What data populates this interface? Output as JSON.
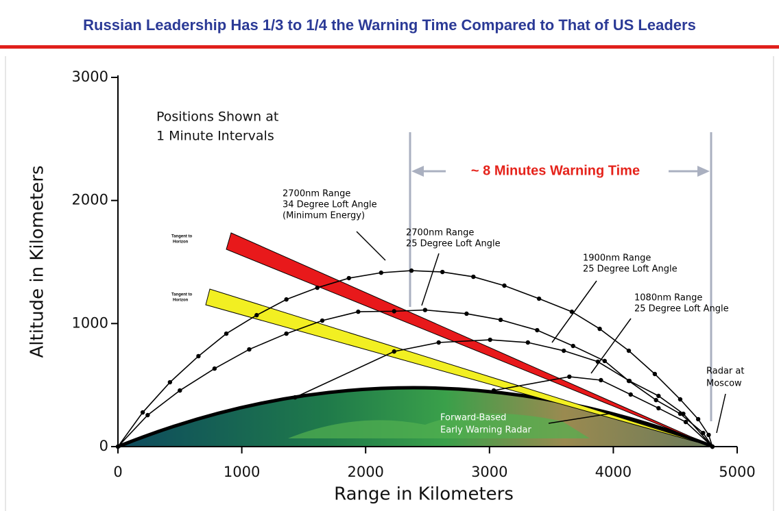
{
  "chart_data": {
    "type": "line",
    "title": "Russian Leadership Has 1/3 to 1/4 the Warning Time Compared to That of US Leaders",
    "x_label": "Range in Kilometers",
    "y_label": "Altitude in Kilometers",
    "xlim": [
      0,
      5000
    ],
    "ylim": [
      0,
      3000
    ],
    "xticks": [
      0,
      1000,
      2000,
      3000,
      4000,
      5000
    ],
    "yticks": [
      0,
      1000,
      2000,
      3000
    ],
    "annotations": {
      "positions_note": [
        "Positions Shown at",
        "1 Minute Intervals"
      ],
      "warning_time": "~ 8 Minutes Warning Time",
      "tangent_upper": [
        "Tangent to",
        "Horizon"
      ],
      "tangent_lower": [
        "Tangent to",
        "Horizon"
      ],
      "radar_forward": [
        "Forward-Based",
        "Early Warning Radar"
      ],
      "radar_moscow": [
        "Radar at",
        "Moscow"
      ]
    },
    "series": [
      {
        "name": [
          "2700nm Range",
          "34 Degree Loft Angle",
          "(Minimum Energy)"
        ],
        "color": "#000000",
        "x": [
          0,
          200,
          420,
          650,
          875,
          1120,
          1360,
          1610,
          1865,
          2125,
          2370,
          2620,
          2870,
          3120,
          3400,
          3665,
          3890,
          4125,
          4335,
          4540,
          4685,
          4770,
          4800
        ],
        "values": [
          0,
          278,
          523,
          735,
          918,
          1068,
          1196,
          1291,
          1369,
          1413,
          1430,
          1419,
          1380,
          1308,
          1202,
          1096,
          957,
          779,
          590,
          384,
          223,
          95,
          0
        ]
      },
      {
        "name": [
          "2700nm Range",
          "25 Degree Loft Angle"
        ],
        "color": "#000000",
        "x": [
          0,
          240,
          500,
          780,
          1060,
          1360,
          1650,
          1940,
          2230,
          2480,
          2815,
          3090,
          3385,
          3675,
          3930,
          4125,
          4345,
          4540,
          4725,
          4800
        ],
        "values": [
          0,
          256,
          456,
          634,
          790,
          918,
          1024,
          1096,
          1100,
          1110,
          1080,
          1030,
          946,
          818,
          696,
          534,
          378,
          267,
          111,
          0
        ]
      },
      {
        "name": [
          "1900nm Range",
          "25 Degree Loft Angle"
        ],
        "color": "#000000",
        "x": [
          1430,
          2230,
          2590,
          3005,
          3310,
          3600,
          3875,
          4130,
          4365,
          4565,
          4800
        ],
        "values": [
          400,
          773,
          846,
          868,
          846,
          779,
          690,
          534,
          412,
          267,
          0
        ]
      },
      {
        "name": [
          "1080nm Range",
          "25 Degree Loft Angle"
        ],
        "color": "#000000",
        "x": [
          3035,
          3645,
          3900,
          4140,
          4365,
          4585,
          4800
        ],
        "values": [
          456,
          568,
          540,
          423,
          312,
          200,
          0
        ]
      }
    ]
  }
}
